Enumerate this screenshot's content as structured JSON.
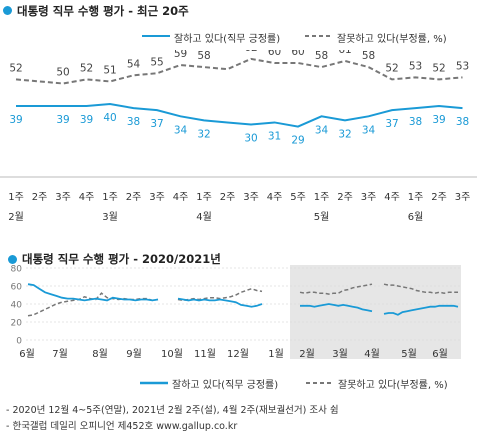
{
  "chart1": {
    "title": "대통령 직무 수행 평가 - 최근 20주",
    "legend": {
      "approve": "잘하고 있다(직무 긍정률)",
      "disapprove": "잘못하고 있다(부정률, %)"
    },
    "week_labels": [
      "1주",
      "2주",
      "3주",
      "4주",
      "1주",
      "2주",
      "3주",
      "4주",
      "1주",
      "2주",
      "3주",
      "4주",
      "5주",
      "1주",
      "2주",
      "3주",
      "4주",
      "1주",
      "2주",
      "3주"
    ],
    "month_labels": [
      {
        "label": "2월",
        "index": 0
      },
      {
        "label": "3월",
        "index": 4
      },
      {
        "label": "4월",
        "index": 8
      },
      {
        "label": "5월",
        "index": 13
      },
      {
        "label": "6월",
        "index": 17
      }
    ],
    "chart_data": {
      "type": "line",
      "series": [
        {
          "name": "잘하고 있다(직무 긍정률)",
          "color": "#1a9ad6",
          "values": [
            39,
            39,
            39,
            39,
            40,
            38,
            37,
            34,
            32,
            31,
            30,
            31,
            29,
            34,
            32,
            34,
            37,
            38,
            39,
            38
          ]
        },
        {
          "name": "잘못하고 있다(부정률, %)",
          "color": "#777777",
          "values": [
            52,
            51,
            50,
            52,
            51,
            54,
            55,
            59,
            58,
            57,
            62,
            60,
            60,
            58,
            61,
            58,
            52,
            53,
            52,
            53
          ]
        }
      ],
      "approve_labels": [
        "39",
        "",
        "39",
        "39",
        "40",
        "38",
        "37",
        "34",
        "32",
        "",
        "30",
        "31",
        "29",
        "34",
        "32",
        "34",
        "37",
        "38",
        "39",
        "38"
      ],
      "disapprove_labels": [
        "52",
        "",
        "50",
        "52",
        "51",
        "54",
        "55",
        "59",
        "58",
        "",
        "62",
        "60",
        "60",
        "58",
        "61",
        "58",
        "52",
        "53",
        "52",
        "53"
      ]
    }
  },
  "chart2": {
    "title": "대통령 직무 수행 평가 - 2020/2021년",
    "y_ticks": [
      "80",
      "60",
      "40",
      "20",
      "0"
    ],
    "month_labels": [
      "6월",
      "7월",
      "8월",
      "9월",
      "10월",
      "11월",
      "12월",
      "1월",
      "2월",
      "3월",
      "4월",
      "5월",
      "6월"
    ],
    "legend": {
      "approve": "잘하고 있다(직무 긍정률)",
      "disapprove": "잘못하고 있다(부정률, %)"
    },
    "chart_data": {
      "type": "line",
      "y_range": [
        0,
        80
      ],
      "shaded_period": "2021년 2월 ~ 6월",
      "series": [
        {
          "name": "잘하고 있다(직무 긍정률)",
          "color": "#1a9ad6",
          "segments": [
            [
              62,
              61,
              57,
              53,
              51,
              49,
              47,
              46,
              46,
              45,
              44,
              45,
              46,
              45,
              44,
              47,
              46,
              45,
              45,
              44,
              45,
              45,
              44,
              45
            ],
            [
              46,
              45,
              44,
              45,
              44,
              45,
              44,
              44,
              45,
              44,
              43,
              42,
              39,
              38,
              37,
              38,
              40
            ],
            [
              38,
              38,
              38,
              37,
              38,
              39,
              40,
              39,
              38,
              39,
              38,
              37,
              36,
              34,
              33,
              32
            ],
            [
              29,
              30,
              30,
              28,
              31,
              32,
              33,
              34,
              35,
              36,
              37,
              37,
              38,
              38,
              38,
              38,
              37
            ]
          ]
        },
        {
          "name": "잘못하고 있다(부정률, %)",
          "color": "#777777",
          "segments": [
            [
              27,
              28,
              31,
              34,
              37,
              40,
              42,
              43,
              44,
              45,
              48,
              46,
              45,
              52,
              47,
              46,
              45,
              46,
              45,
              45,
              46,
              46,
              44,
              45
            ],
            [
              45,
              44,
              45,
              46,
              45,
              46,
              47,
              47,
              46,
              47,
              48,
              50,
              53,
              55,
              57,
              55,
              54
            ],
            [
              53,
              52,
              53,
              53,
              52,
              52,
              51,
              52,
              52,
              55,
              56,
              58,
              59,
              60,
              61,
              62
            ],
            [
              62,
              61,
              61,
              60,
              59,
              58,
              57,
              55,
              54,
              53,
              53,
              52,
              53,
              52,
              53,
              53,
              53
            ]
          ]
        }
      ]
    }
  },
  "notes": [
    "- 2020년 12월 4~5주(연말), 2021년 2월 2주(설), 4월 2주(재보궐선거) 조사 쉼",
    "- 한국갤럽 데일리 오피니언 제452호 www.gallup.co.kr"
  ]
}
